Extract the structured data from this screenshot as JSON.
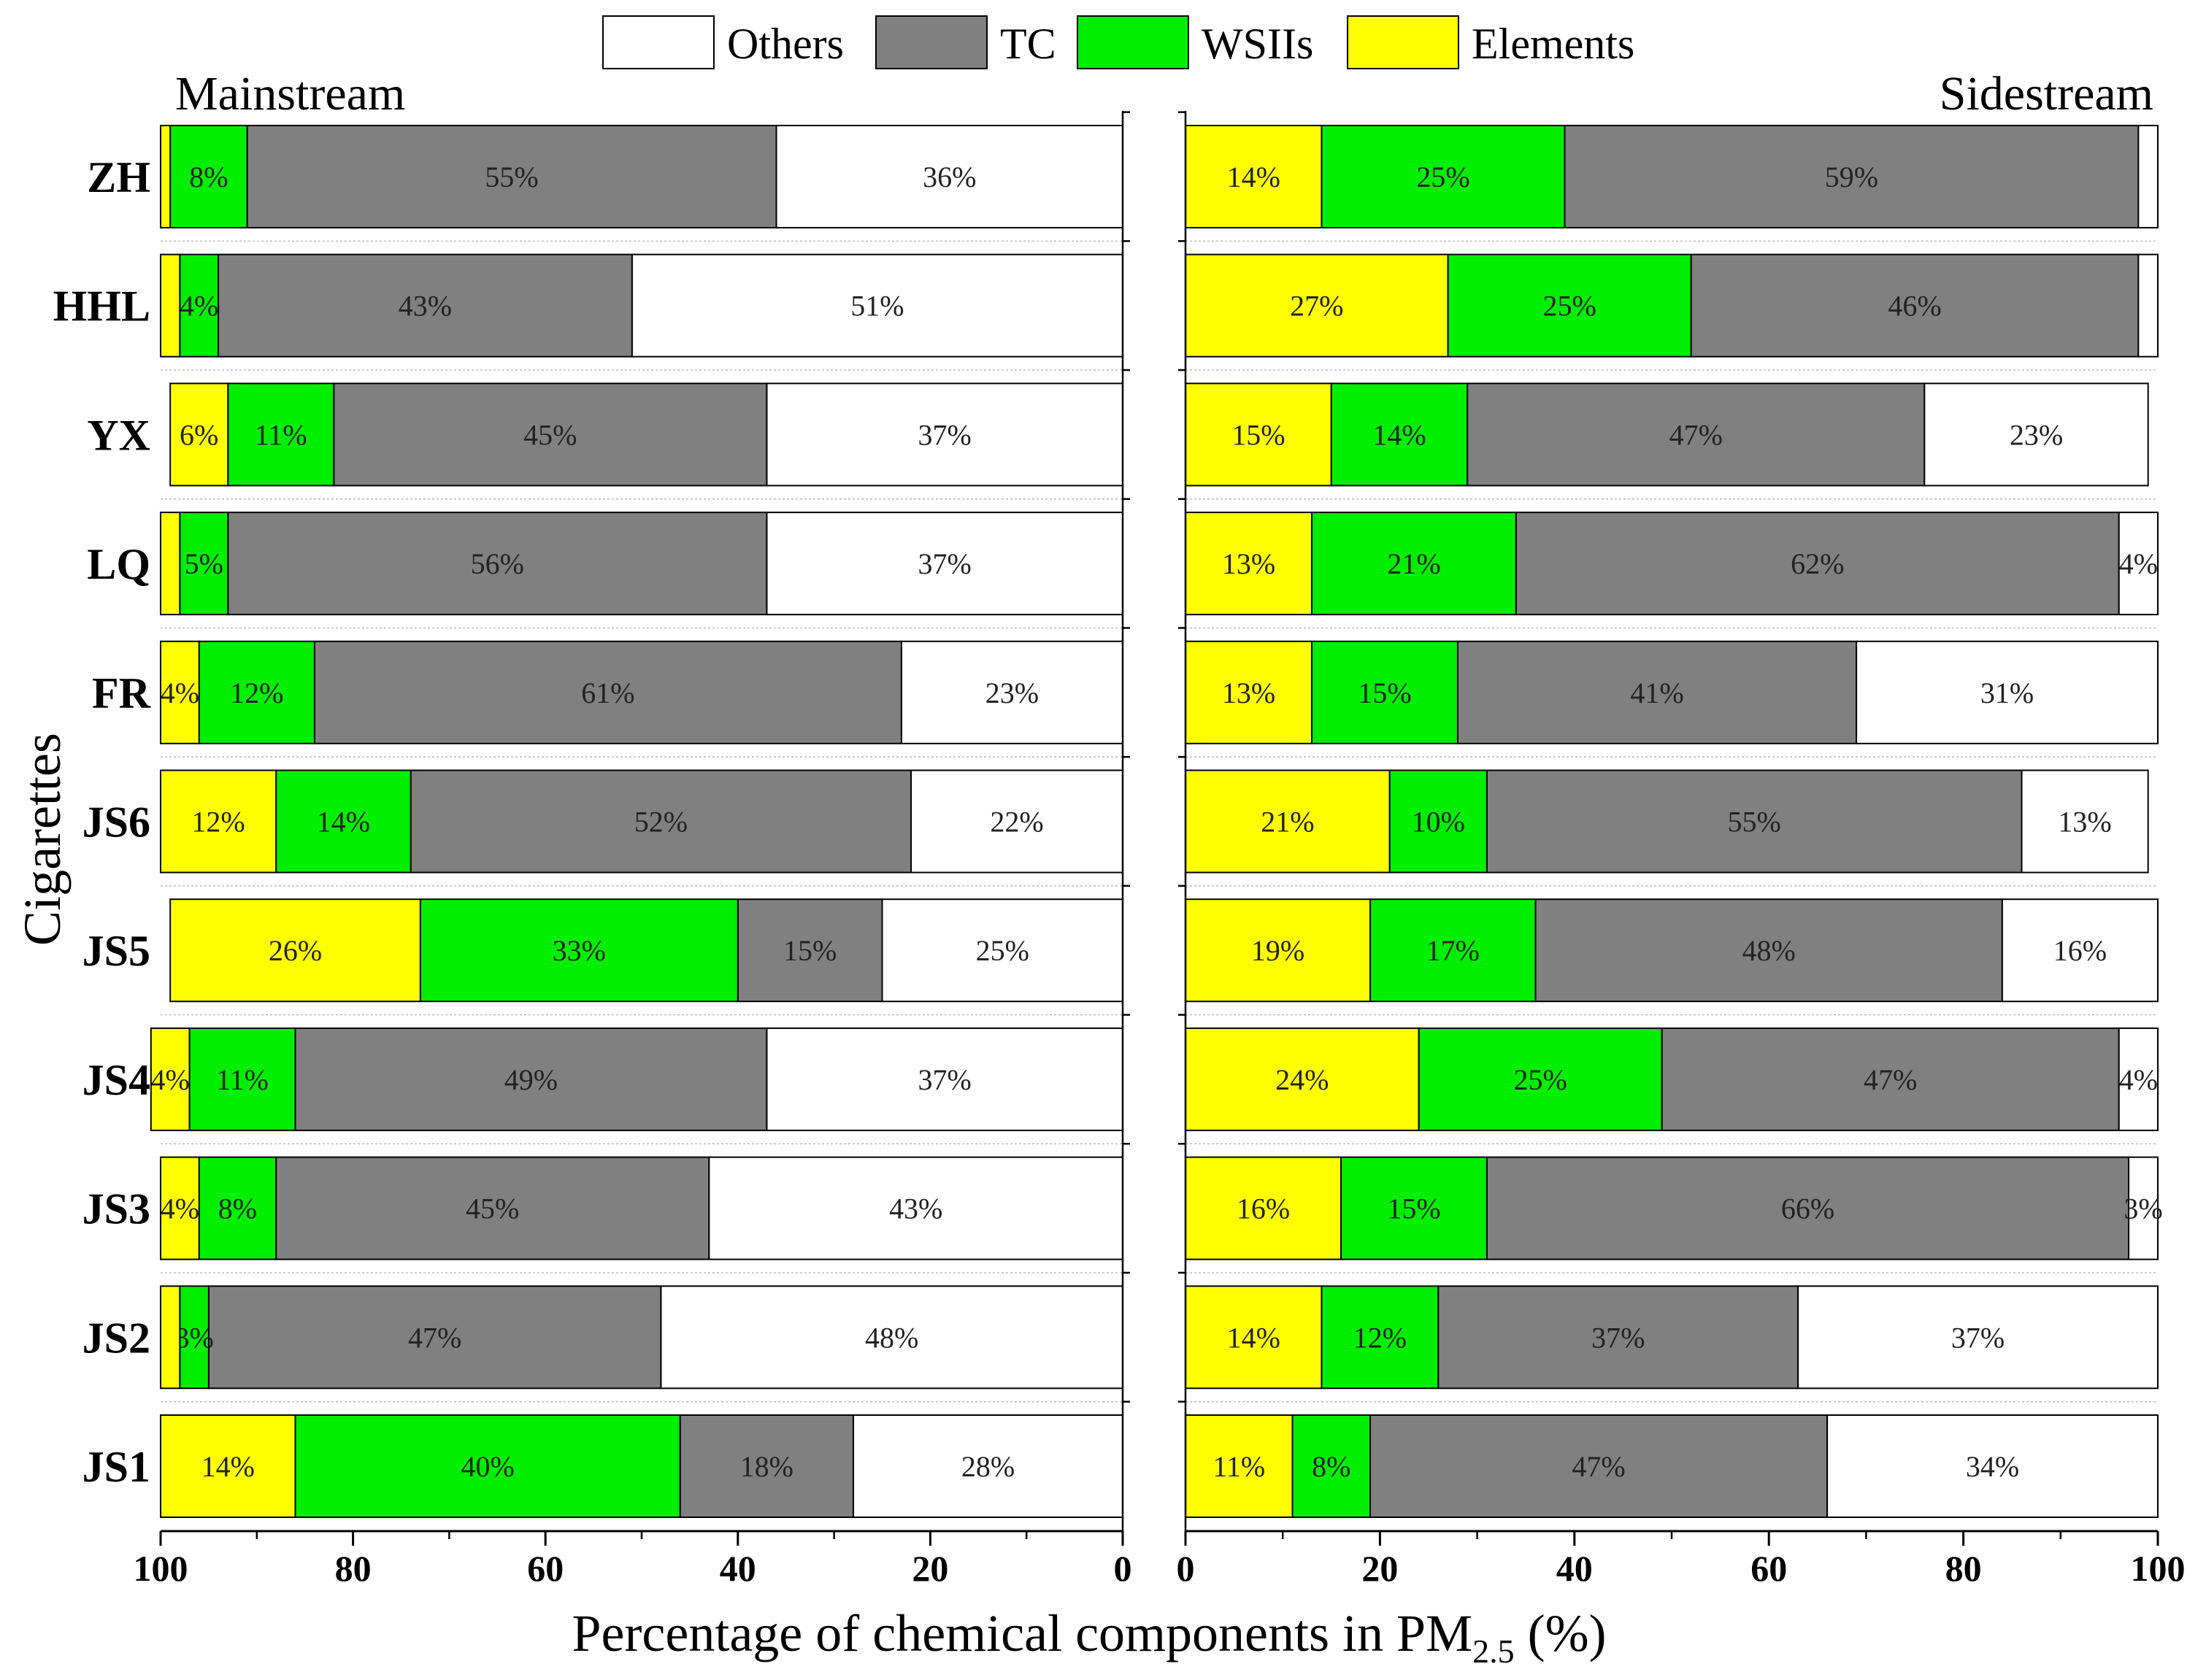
{
  "chart_data": {
    "type": "bar",
    "orientation": "horizontal-stacked",
    "ylabel": "Cigarettes",
    "xlabel_main": "Percentage of chemical components in PM",
    "xlabel_sub": "2.5",
    "xlabel_tail": " (%)",
    "categories": [
      "ZH",
      "HHL",
      "YX",
      "LQ",
      "FR",
      "JS6",
      "JS5",
      "JS4",
      "JS3",
      "JS2",
      "JS1"
    ],
    "legend": [
      {
        "name": "Others",
        "color": "#ffffff"
      },
      {
        "name": "TC",
        "color": "#808080"
      },
      {
        "name": "WSIIs",
        "color": "#00ee00"
      },
      {
        "name": "Elements",
        "color": "#ffff00"
      }
    ],
    "colors": {
      "Others": "#ffffff",
      "TC": "#808080",
      "WSIIs": "#00ee00",
      "Elements": "#ffff00"
    },
    "panels": [
      {
        "title": "Mainstream",
        "direction": "reversed",
        "xlim": [
          100,
          0
        ],
        "ticks": [
          "100",
          "80",
          "60",
          "40",
          "20",
          "0"
        ],
        "order": [
          "Others",
          "TC",
          "WSIIs",
          "Elements"
        ],
        "series": {
          "Others": [
            36,
            51,
            37,
            37,
            23,
            22,
            25,
            37,
            43,
            48,
            28
          ],
          "TC": [
            55,
            43,
            45,
            56,
            61,
            52,
            15,
            49,
            45,
            47,
            18
          ],
          "WSIIs": [
            8,
            4,
            11,
            5,
            12,
            14,
            33,
            11,
            8,
            3,
            40
          ],
          "Elements": [
            1,
            2,
            6,
            2,
            4,
            12,
            26,
            4,
            4,
            2,
            14
          ]
        },
        "labels": {
          "Others": [
            "36%",
            "51%",
            "37%",
            "37%",
            "23%",
            "22%",
            "25%",
            "37%",
            "43%",
            "48%",
            "28%"
          ],
          "TC": [
            "55%",
            "43%",
            "45%",
            "56%",
            "61%",
            "52%",
            "15%",
            "49%",
            "45%",
            "47%",
            "18%"
          ],
          "WSIIs": [
            "8%",
            "4%",
            "11%",
            "5%",
            "12%",
            "14%",
            "33%",
            "11%",
            "8%",
            "3%",
            "40%"
          ],
          "Elements": [
            "",
            "",
            "6%",
            "",
            "4%",
            "12%",
            "26%",
            "4%",
            "4%",
            "",
            "14%"
          ]
        }
      },
      {
        "title": "Sidestream",
        "direction": "normal",
        "xlim": [
          0,
          100
        ],
        "ticks": [
          "0",
          "20",
          "40",
          "60",
          "80",
          "100"
        ],
        "order": [
          "Elements",
          "WSIIs",
          "TC",
          "Others"
        ],
        "series": {
          "Elements": [
            14,
            27,
            15,
            13,
            13,
            21,
            19,
            24,
            16,
            14,
            11
          ],
          "WSIIs": [
            25,
            25,
            14,
            21,
            15,
            10,
            17,
            25,
            15,
            12,
            8
          ],
          "TC": [
            59,
            46,
            47,
            62,
            41,
            55,
            48,
            47,
            66,
            37,
            47
          ],
          "Others": [
            2,
            2,
            23,
            4,
            31,
            13,
            16,
            4,
            3,
            37,
            34
          ]
        },
        "labels": {
          "Elements": [
            "14%",
            "27%",
            "15%",
            "13%",
            "13%",
            "21%",
            "19%",
            "24%",
            "16%",
            "14%",
            "11%"
          ],
          "WSIIs": [
            "25%",
            "25%",
            "14%",
            "21%",
            "15%",
            "10%",
            "17%",
            "25%",
            "15%",
            "12%",
            "8%"
          ],
          "TC": [
            "59%",
            "46%",
            "47%",
            "62%",
            "41%",
            "55%",
            "48%",
            "47%",
            "66%",
            "37%",
            "47%"
          ],
          "Others": [
            "",
            "",
            "23%",
            "4%",
            "31%",
            "13%",
            "16%",
            "4%",
            "3%",
            "37%",
            "34%"
          ]
        }
      }
    ]
  }
}
